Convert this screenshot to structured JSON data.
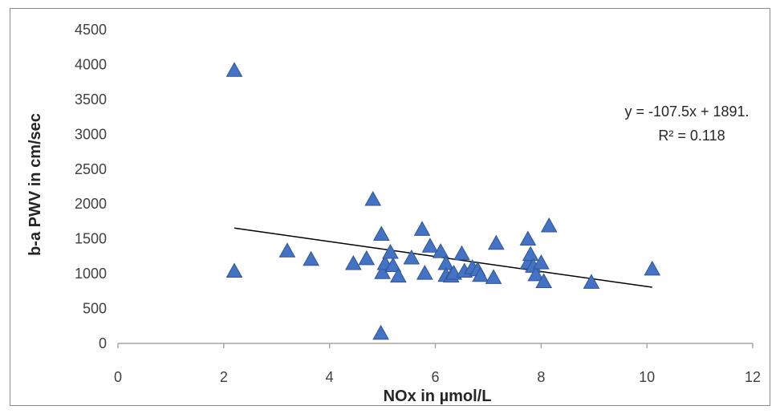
{
  "chart_data": {
    "type": "scatter",
    "title": "",
    "xlabel": "NOx in µmol/L",
    "ylabel": "b-a PWV in cm/sec",
    "xlim": [
      0,
      12
    ],
    "ylim": [
      0,
      4500
    ],
    "xticks": [
      "0",
      "2",
      "4",
      "6",
      "8",
      "10",
      "12"
    ],
    "yticks": [
      "0",
      "500",
      "1000",
      "1500",
      "2000",
      "2500",
      "3000",
      "3500",
      "4000",
      "4500"
    ],
    "grid": false,
    "marker": "triangle",
    "marker_color": "#4472c4",
    "series": [
      {
        "points": [
          [
            2.2,
            3910
          ],
          [
            2.2,
            1030
          ],
          [
            3.2,
            1320
          ],
          [
            3.65,
            1200
          ],
          [
            4.45,
            1140
          ],
          [
            4.7,
            1210
          ],
          [
            4.82,
            2060
          ],
          [
            4.98,
            1560
          ],
          [
            5.0,
            1010
          ],
          [
            5.05,
            1140
          ],
          [
            5.15,
            1300
          ],
          [
            5.2,
            1110
          ],
          [
            5.3,
            960
          ],
          [
            4.97,
            140
          ],
          [
            5.55,
            1220
          ],
          [
            5.75,
            1630
          ],
          [
            5.8,
            1000
          ],
          [
            5.9,
            1390
          ],
          [
            6.1,
            1310
          ],
          [
            6.2,
            1140
          ],
          [
            6.2,
            970
          ],
          [
            6.3,
            960
          ],
          [
            6.35,
            1000
          ],
          [
            6.5,
            1280
          ],
          [
            6.55,
            1030
          ],
          [
            6.7,
            1080
          ],
          [
            6.8,
            1050
          ],
          [
            6.85,
            970
          ],
          [
            7.1,
            940
          ],
          [
            7.15,
            1430
          ],
          [
            7.75,
            1490
          ],
          [
            7.75,
            1150
          ],
          [
            7.8,
            1270
          ],
          [
            7.85,
            1100
          ],
          [
            7.9,
            980
          ],
          [
            8.0,
            1150
          ],
          [
            8.05,
            880
          ],
          [
            8.15,
            1680
          ],
          [
            8.95,
            870
          ],
          [
            10.1,
            1060
          ]
        ]
      }
    ],
    "trendline": {
      "type": "linear",
      "slope": -107.5,
      "intercept": 1891,
      "x_range": [
        2.2,
        10.1
      ],
      "color": "#000000",
      "equation_label": "y = -107.5x + 1891.",
      "r2_label": "R² = 0.118"
    }
  }
}
